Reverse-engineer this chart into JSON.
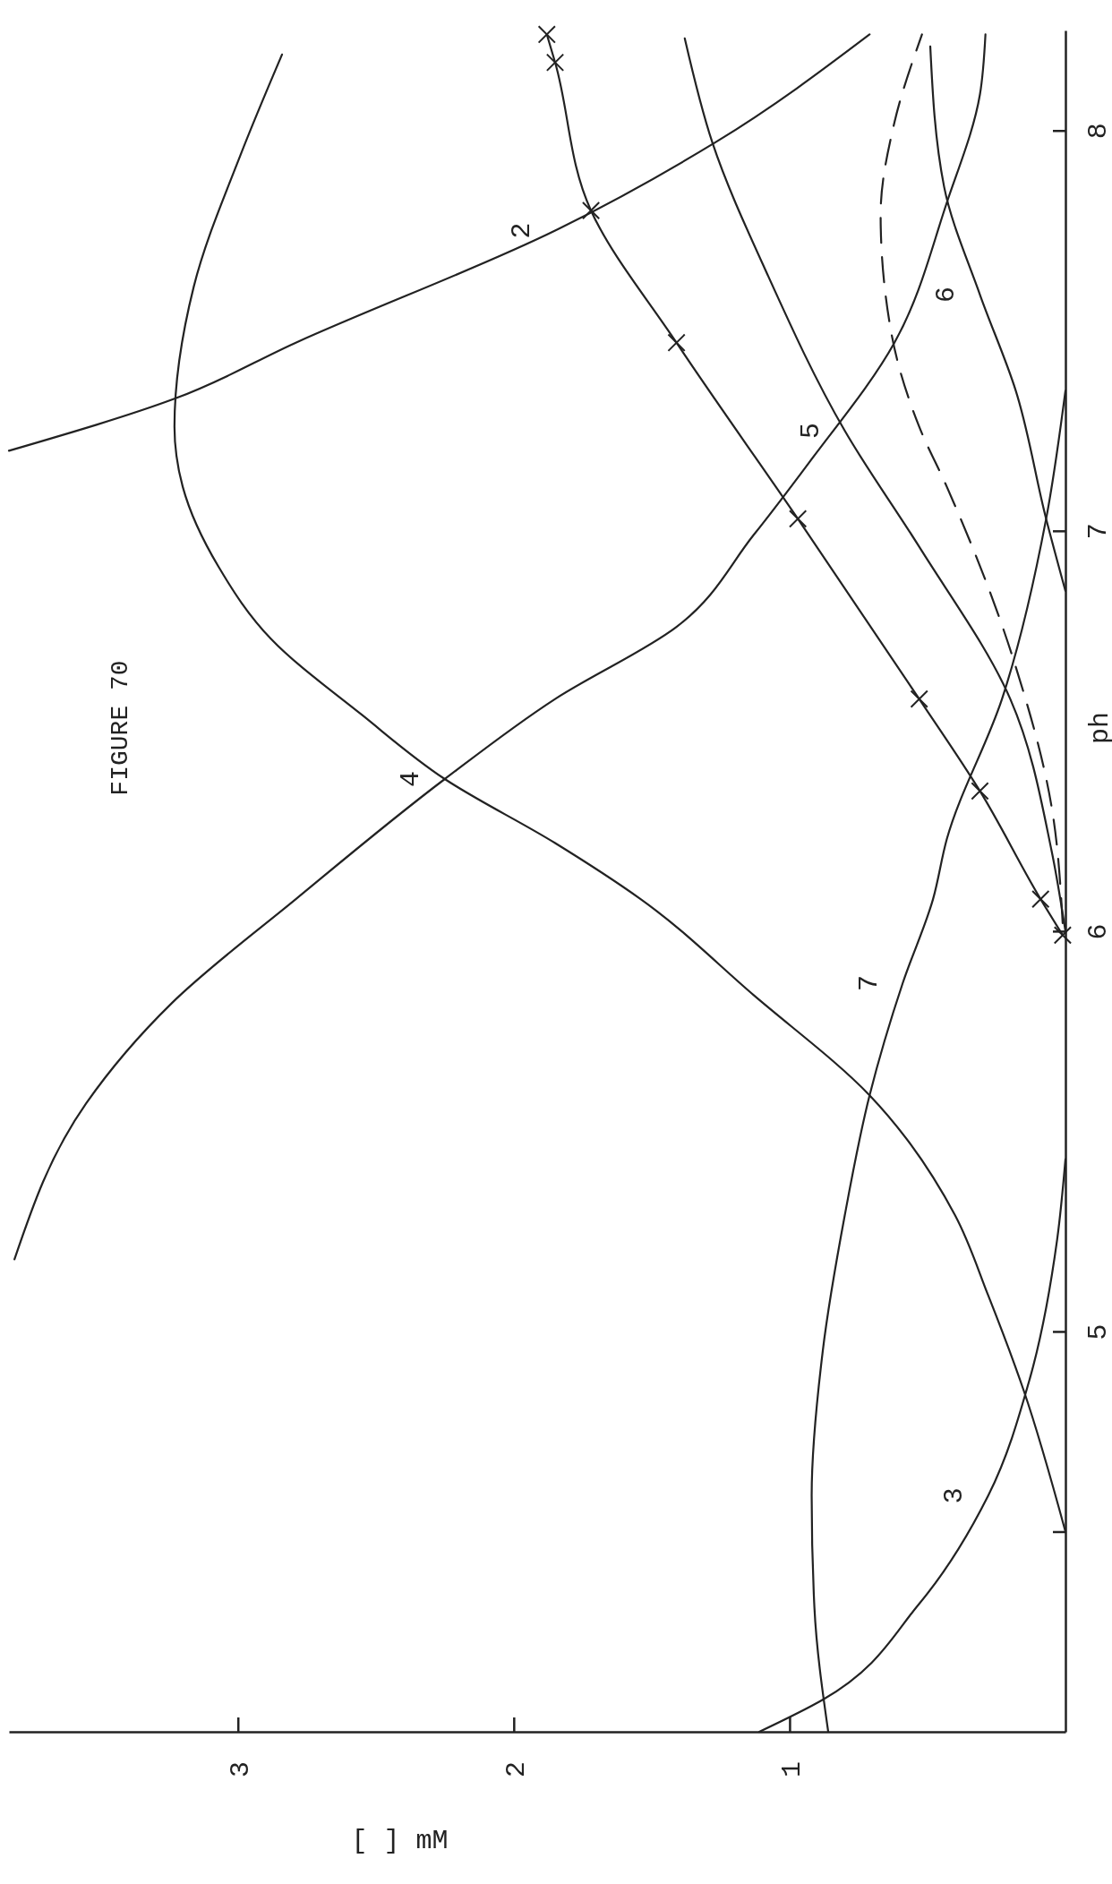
{
  "chart_data": {
    "type": "line",
    "title": "FIGURE 70",
    "xlabel": "[ ] mM",
    "ylabel": "ph",
    "xlim": [
      3.83,
      0
    ],
    "xticks": [
      3,
      2,
      1
    ],
    "ylim": [
      4,
      8.25
    ],
    "yticks": [
      {
        "value": 4.5,
        "label": null
      },
      5,
      6,
      7,
      8
    ],
    "grid": false,
    "line_style": "solid",
    "marker": "none",
    "series": [
      {
        "name": "2",
        "color": "#222222",
        "values": [
          7.2,
          7.33,
          7.47,
          7.75,
          7.97,
          8.24
        ],
        "x": [
          3.83,
          3.23,
          2.79,
          1.85,
          1.27,
          0.71
        ]
      },
      {
        "name": "4",
        "color": "#222222",
        "values": [
          4.5,
          4.85,
          5.09,
          5.29,
          5.59,
          5.84,
          6.08,
          6.22,
          6.38,
          6.54,
          6.73,
          6.91,
          7.11,
          7.26,
          7.61,
          7.94,
          8.19
        ],
        "x": [
          0,
          0.15,
          0.28,
          0.4,
          0.71,
          1.13,
          1.54,
          1.85,
          2.25,
          2.55,
          2.88,
          3.07,
          3.2,
          3.23,
          3.16,
          2.99,
          2.84
        ]
      },
      {
        "color": "#222222",
        "values": [
          5.18,
          5.57,
          5.82,
          6.08,
          6.38,
          6.58,
          6.76,
          6.99,
          7.17,
          7.47,
          7.82,
          8.09,
          8.24
        ],
        "x": [
          3.81,
          3.55,
          3.24,
          2.79,
          2.25,
          1.85,
          1.41,
          1.13,
          0.93,
          0.62,
          0.43,
          0.31,
          0.29
        ]
      },
      {
        "name": "3",
        "color": "#222222",
        "values": [
          4.0,
          4.08,
          4.32,
          4.59,
          4.88,
          5.23,
          5.43
        ],
        "x": [
          1.11,
          0.88,
          0.53,
          0.28,
          0.13,
          0.03,
          0
        ]
      },
      {
        "name": "7",
        "color": "#222222",
        "values": [
          4.0,
          4.31,
          4.59,
          4.95,
          5.29,
          5.59,
          5.87,
          6.08,
          6.23,
          6.58,
          7.03,
          7.35
        ],
        "x": [
          0.86,
          0.91,
          0.92,
          0.88,
          0.8,
          0.71,
          0.59,
          0.48,
          0.43,
          0.23,
          0.07,
          0
        ]
      },
      {
        "name": "5",
        "color": "#222222",
        "values": [
          6.0,
          6.2,
          6.58,
          6.96,
          7.25,
          7.64,
          7.97,
          8.23
        ],
        "x": [
          0,
          0.05,
          0.2,
          0.53,
          0.8,
          1.08,
          1.28,
          1.38
        ]
      },
      {
        "name": "6",
        "color": "#222222",
        "values": [
          6.85,
          7.03,
          7.35,
          7.59,
          7.86,
          8.21
        ],
        "x": [
          0,
          0.07,
          0.18,
          0.31,
          0.44,
          0.49
        ]
      },
      {
        "color": "#222222",
        "line_style": "dashed",
        "values": [
          6.02,
          6.31,
          6.66,
          7.11,
          7.26,
          7.49,
          7.79,
          8.02,
          8.24
        ],
        "x": [
          0.01,
          0.05,
          0.18,
          0.43,
          0.53,
          0.63,
          0.67,
          0.62,
          0.52
        ]
      },
      {
        "color": "#222222",
        "marker": "cross",
        "values": [
          5.99,
          6.08,
          6.35,
          6.58,
          7.03,
          7.47,
          7.8,
          8.17,
          8.24
        ],
        "x": [
          0.01,
          0.09,
          0.31,
          0.53,
          0.97,
          1.41,
          1.72,
          1.85,
          1.88
        ]
      }
    ]
  }
}
